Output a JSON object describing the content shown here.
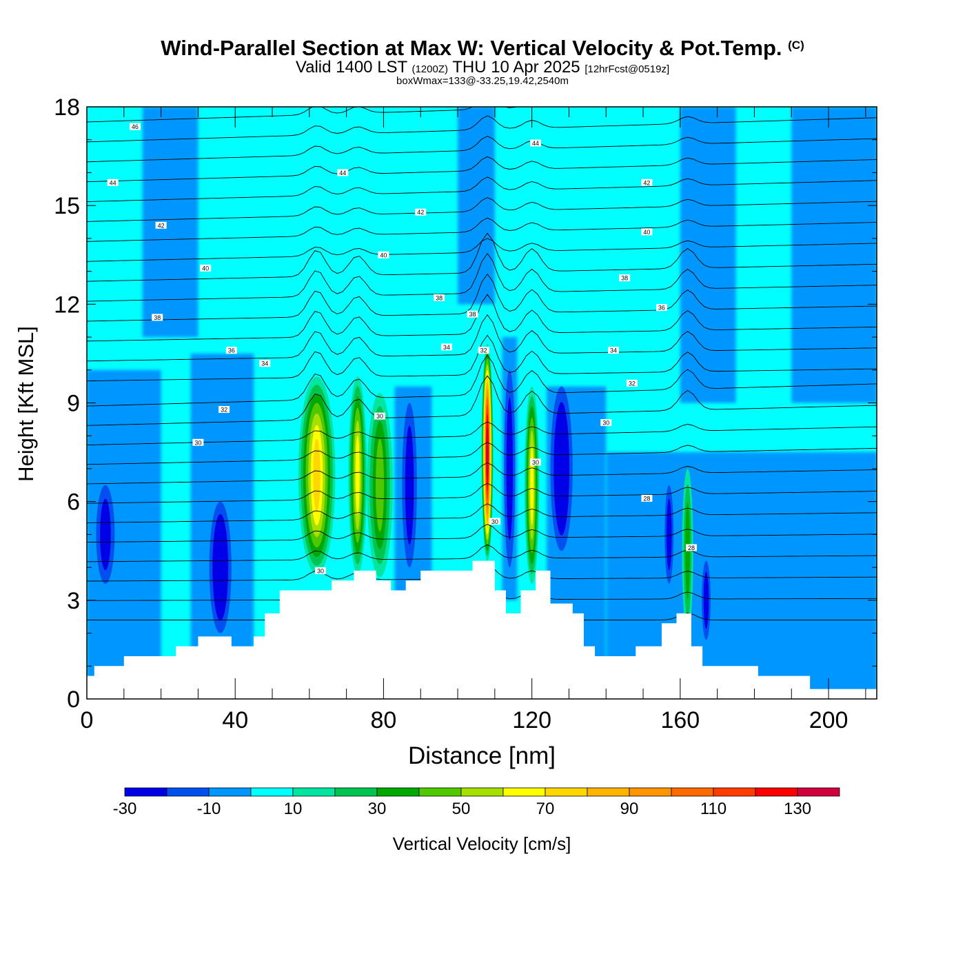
{
  "header": {
    "title": "Wind-Parallel Section at Max W: Vertical Velocity & Pot.Temp.",
    "copyright": "(C)",
    "valid_prefix": "Valid 1400 LST",
    "valid_utc": "(1200Z)",
    "valid_date": "THU 10 Apr 2025",
    "forecast": "[12hrFcst@0519z]",
    "box_info": "boxWmax=133@-33.25,19.42,2540m"
  },
  "chart_data": {
    "type": "heatmap",
    "title": "Wind-Parallel Section at Max W: Vertical Velocity & Pot.Temp.",
    "xlabel": "Distance [nm]",
    "ylabel": "Height [Kft MSL]",
    "xlim": [
      0,
      213
    ],
    "ylim": [
      0,
      18
    ],
    "xticks": [
      0,
      40,
      80,
      120,
      160,
      200
    ],
    "yticks": [
      0,
      3,
      6,
      9,
      12,
      15,
      18
    ],
    "colorbar": {
      "label": "Vertical Velocity [cm/s]",
      "levels": [
        -30,
        -20,
        -10,
        0,
        10,
        20,
        30,
        40,
        50,
        60,
        70,
        80,
        90,
        100,
        110,
        120,
        130,
        140
      ],
      "tick_labels": [
        "-30",
        "-10",
        "10",
        "30",
        "50",
        "70",
        "90",
        "110",
        "130"
      ],
      "colors": [
        "#0000e8",
        "#0050f0",
        "#0096ff",
        "#00ffff",
        "#00e6a0",
        "#00c450",
        "#00a800",
        "#50c800",
        "#a6e000",
        "#ffff00",
        "#ffd700",
        "#ffb400",
        "#ff9600",
        "#ff6a00",
        "#ff3c00",
        "#ff0000",
        "#d2003c"
      ]
    },
    "terrain": [
      [
        0,
        0.7
      ],
      [
        2,
        1
      ],
      [
        10,
        1.3
      ],
      [
        24,
        1.6
      ],
      [
        30,
        1.9
      ],
      [
        39,
        1.6
      ],
      [
        45,
        1.9
      ],
      [
        48,
        2.6
      ],
      [
        52,
        3.3
      ],
      [
        66,
        3.6
      ],
      [
        72,
        3.9
      ],
      [
        78,
        3.6
      ],
      [
        82,
        3.3
      ],
      [
        86,
        3.6
      ],
      [
        90,
        3.9
      ],
      [
        104,
        4.2
      ],
      [
        110,
        3.3
      ],
      [
        113,
        2.6
      ],
      [
        117,
        3.3
      ],
      [
        121,
        3.9
      ],
      [
        125,
        2.9
      ],
      [
        131,
        2.6
      ],
      [
        134,
        1.6
      ],
      [
        137,
        1.3
      ],
      [
        148,
        1.6
      ],
      [
        155,
        2.3
      ],
      [
        159,
        2.6
      ],
      [
        163,
        1.6
      ],
      [
        166,
        1
      ],
      [
        181,
        0.7
      ],
      [
        195,
        0.3
      ],
      [
        213,
        0.3
      ]
    ],
    "updrafts": [
      {
        "x": 62,
        "peak": 70
      },
      {
        "x": 73,
        "peak": 60
      },
      {
        "x": 79,
        "peak": 40
      },
      {
        "x": 108,
        "peak": 133
      },
      {
        "x": 120,
        "peak": 60
      },
      {
        "x": 162,
        "peak": 30
      }
    ],
    "downdrafts": [
      {
        "x": 36,
        "peak": -30
      },
      {
        "x": 5,
        "peak": -20
      },
      {
        "x": 87,
        "peak": -20
      },
      {
        "x": 114,
        "peak": -20
      },
      {
        "x": 128,
        "peak": -30
      },
      {
        "x": 157,
        "peak": -20
      },
      {
        "x": 167,
        "peak": -20
      }
    ],
    "isentropes": {
      "labels": [
        {
          "text": "46",
          "x": 13,
          "y": 17.4
        },
        {
          "text": "44",
          "x": 7,
          "y": 15.7
        },
        {
          "text": "44",
          "x": 69,
          "y": 16
        },
        {
          "text": "44",
          "x": 121,
          "y": 16.9
        },
        {
          "text": "42",
          "x": 20,
          "y": 14.4
        },
        {
          "text": "42",
          "x": 90,
          "y": 14.8
        },
        {
          "text": "42",
          "x": 151,
          "y": 15.7
        },
        {
          "text": "40",
          "x": 32,
          "y": 13.1
        },
        {
          "text": "40",
          "x": 80,
          "y": 13.5
        },
        {
          "text": "40",
          "x": 151,
          "y": 14.2
        },
        {
          "text": "38",
          "x": 19,
          "y": 11.6
        },
        {
          "text": "38",
          "x": 95,
          "y": 12.2
        },
        {
          "text": "38",
          "x": 104,
          "y": 11.7
        },
        {
          "text": "38",
          "x": 145,
          "y": 12.8
        },
        {
          "text": "36",
          "x": 39,
          "y": 10.6
        },
        {
          "text": "36",
          "x": 155,
          "y": 11.9
        },
        {
          "text": "34",
          "x": 48,
          "y": 10.2
        },
        {
          "text": "34",
          "x": 97,
          "y": 10.7
        },
        {
          "text": "34",
          "x": 142,
          "y": 10.6
        },
        {
          "text": "32",
          "x": 37,
          "y": 8.8
        },
        {
          "text": "32",
          "x": 107,
          "y": 10.6
        },
        {
          "text": "32",
          "x": 147,
          "y": 9.6
        },
        {
          "text": "30",
          "x": 30,
          "y": 7.8
        },
        {
          "text": "30",
          "x": 79,
          "y": 8.6
        },
        {
          "text": "30",
          "x": 63,
          "y": 3.9
        },
        {
          "text": "30",
          "x": 110,
          "y": 5.4
        },
        {
          "text": "30",
          "x": 121,
          "y": 7.2
        },
        {
          "text": "30",
          "x": 140,
          "y": 8.4
        },
        {
          "text": "28",
          "x": 151,
          "y": 6.1
        },
        {
          "text": "28",
          "x": 163,
          "y": 4.6
        }
      ]
    }
  }
}
